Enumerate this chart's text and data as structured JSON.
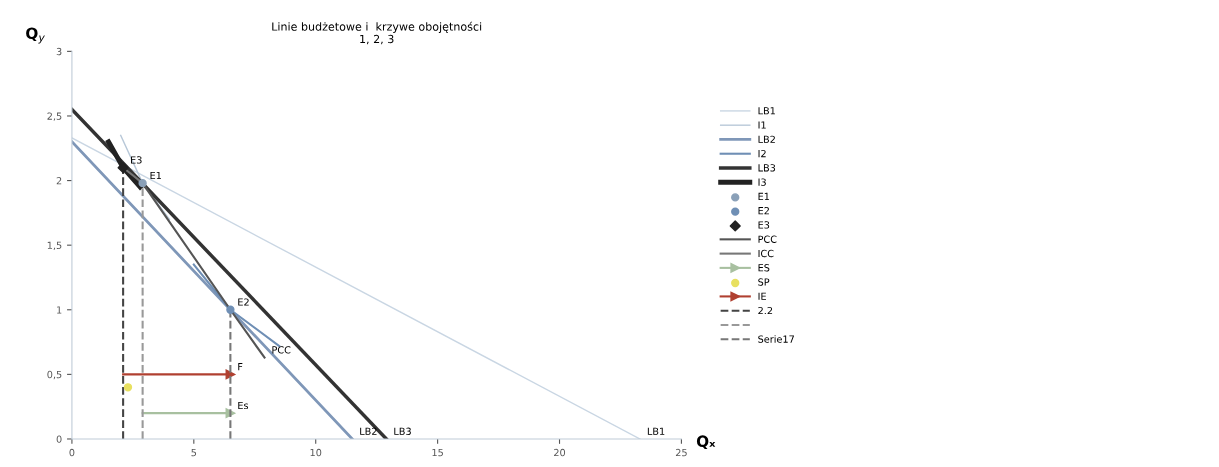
{
  "chart_data": {
    "type": "line",
    "title": "Linie budżetowe i  krzywe obojętności",
    "subtitle": "1, 2, 3",
    "xlabel": "Qₓ",
    "ylabel": "Q$_{y}$",
    "xlim": [
      0,
      25
    ],
    "ylim": [
      0,
      3
    ],
    "xticks": [
      0,
      5,
      10,
      15,
      20,
      25
    ],
    "yticks": [
      0,
      {
        "value": 0.5,
        "label": "0,5"
      },
      1,
      {
        "value": 1.5,
        "label": "1,5"
      },
      2,
      {
        "value": 2.5,
        "label": "2,5"
      },
      3
    ],
    "grid": false,
    "legend": "right",
    "series": [
      {
        "name": "LB1",
        "color": "#c9d6e3",
        "x": [
          0,
          23.3
        ],
        "values": [
          2.33,
          0
        ]
      },
      {
        "name": "I1",
        "color": "#b8c8d8",
        "x": [
          2.0,
          2.9,
          4.0
        ],
        "values": [
          2.35,
          1.98,
          1.7
        ]
      },
      {
        "name": "LB2",
        "color": "#7f97b8",
        "x": [
          0,
          11.5
        ],
        "values": [
          2.3,
          0
        ]
      },
      {
        "name": "I2",
        "color": "#6f8fb5",
        "x": [
          5.0,
          6.5,
          8.5
        ],
        "values": [
          1.35,
          1.0,
          0.72
        ]
      },
      {
        "name": "LB3",
        "color": "#333333",
        "x": [
          0,
          12.9
        ],
        "values": [
          2.55,
          0
        ]
      },
      {
        "name": "I3",
        "color": "#222222",
        "x": [
          1.5,
          2.1,
          2.8
        ],
        "values": [
          2.3,
          2.1,
          1.95
        ]
      },
      {
        "name": "E1",
        "type": "scatter",
        "marker": "circle",
        "color": "#8aa0b8",
        "x": [
          2.9
        ],
        "values": [
          1.98
        ]
      },
      {
        "name": "E2",
        "type": "scatter",
        "marker": "circle",
        "color": "#6f8fb5",
        "x": [
          6.5
        ],
        "values": [
          1.0
        ]
      },
      {
        "name": "E3",
        "type": "scatter",
        "marker": "diamond",
        "color": "#222222",
        "x": [
          2.1
        ],
        "values": [
          2.1
        ]
      },
      {
        "name": "PCC",
        "color": "#555555",
        "x": [
          2.9,
          6.5,
          7.9
        ],
        "values": [
          1.98,
          1.0,
          0.63
        ]
      },
      {
        "name": "ICC",
        "color": "#777777",
        "x": [
          2.1,
          2.9
        ],
        "values": [
          2.1,
          1.98
        ]
      },
      {
        "name": "ES",
        "marker": "triangle",
        "color": "#a8c0a0",
        "x": [
          2.9,
          6.5
        ],
        "values": [
          0.2,
          0.2
        ]
      },
      {
        "name": "SP",
        "type": "scatter",
        "marker": "circle",
        "color": "#e8e060",
        "x": [
          2.3
        ],
        "values": [
          0.4
        ]
      },
      {
        "name": "IE",
        "marker": "triangle",
        "color": "#b04030",
        "x": [
          2.1,
          6.5
        ],
        "values": [
          0.5,
          0.5
        ]
      },
      {
        "name": "2.2",
        "line_style": "dashed",
        "color": "#444444",
        "x": [
          2.1,
          2.1
        ],
        "values": [
          0,
          2.1
        ]
      },
      {
        "line_style": "dashed",
        "color": "#999999",
        "x": [
          2.9,
          2.9
        ],
        "values": [
          0,
          1.98
        ]
      },
      {
        "name": "Serie17",
        "line_style": "dashed",
        "color": "#777777",
        "x": [
          6.5,
          6.5
        ],
        "values": [
          0,
          1.0
        ]
      }
    ],
    "annotations": [
      {
        "text": "E3",
        "x": 2.1,
        "y": 2.1
      },
      {
        "text": "E1",
        "x": 2.9,
        "y": 1.98
      },
      {
        "text": "E2",
        "x": 6.5,
        "y": 1.0
      },
      {
        "text": "PCC",
        "x": 7.9,
        "y": 0.63
      },
      {
        "text": "F",
        "x": 6.5,
        "y": 0.5
      },
      {
        "text": "Es",
        "x": 6.5,
        "y": 0.2
      },
      {
        "text": "LB2",
        "x": 11.5,
        "y": 0
      },
      {
        "text": "LB3",
        "x": 12.9,
        "y": 0
      },
      {
        "text": "LB1",
        "x": 23.3,
        "y": 0
      }
    ]
  }
}
